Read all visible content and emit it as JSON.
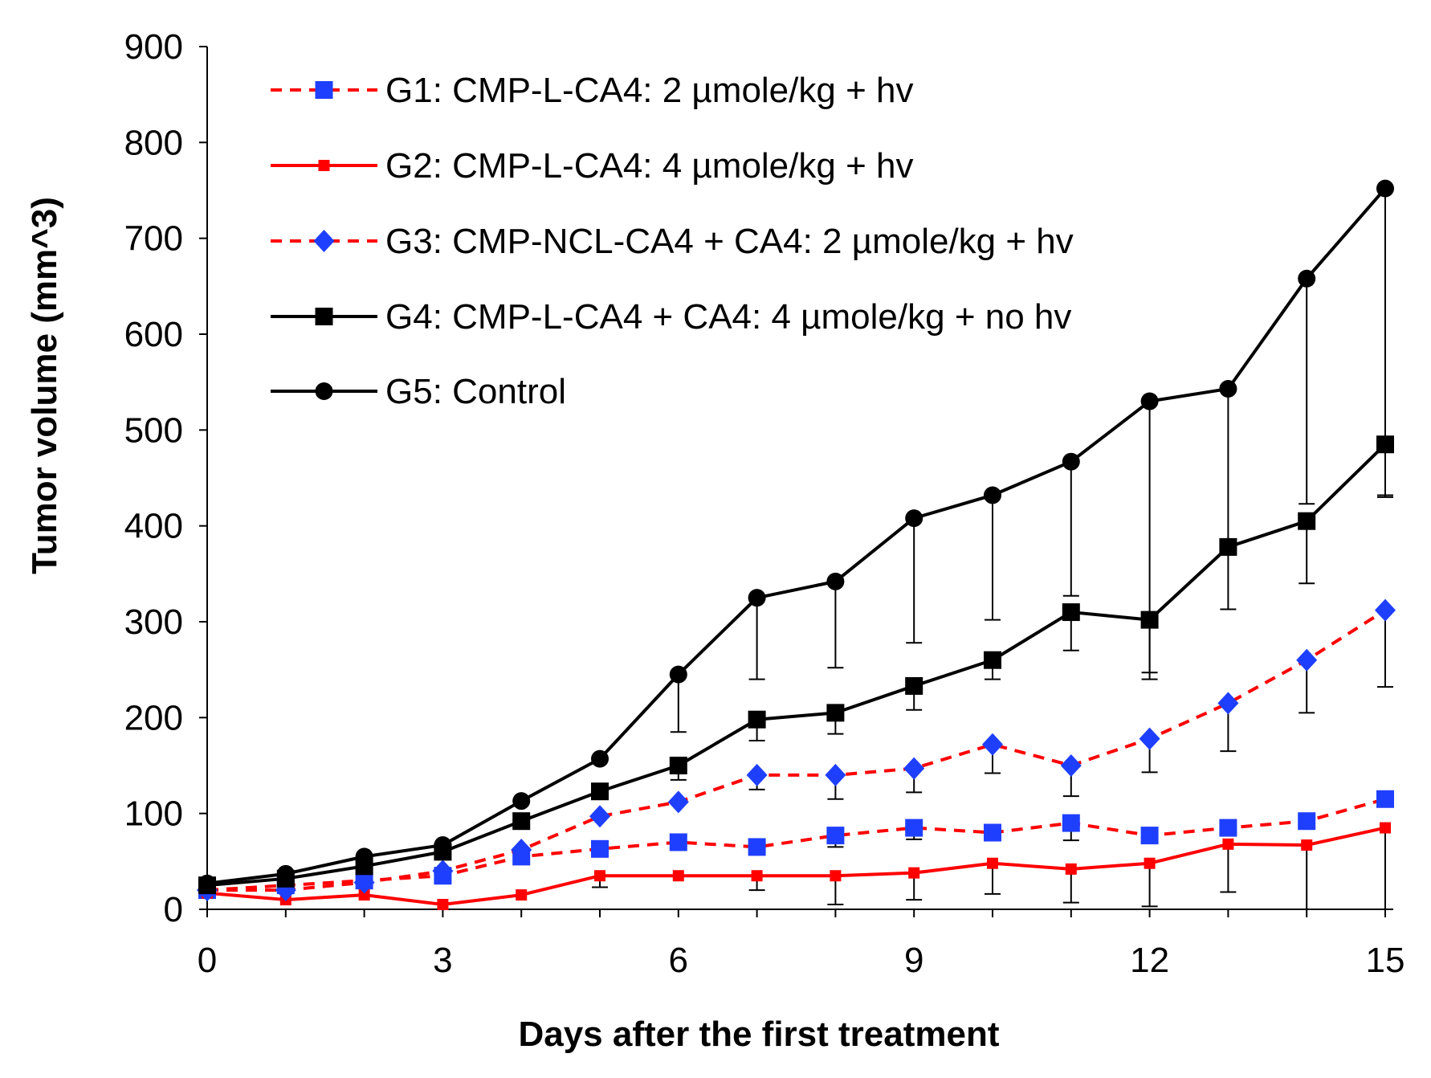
{
  "chart_data": {
    "type": "line",
    "title": "",
    "xlabel": "Days after the first treatment",
    "ylabel": "Tumor volume  (mm^3)",
    "xlim": [
      0,
      15
    ],
    "ylim": [
      0,
      900
    ],
    "x_ticks": [
      0,
      3,
      6,
      9,
      12,
      15
    ],
    "y_ticks": [
      0,
      100,
      200,
      300,
      400,
      500,
      600,
      700,
      800,
      900
    ],
    "legend_position": "top-left",
    "x": [
      0,
      1,
      2,
      3,
      4,
      5,
      6,
      7,
      8,
      9,
      10,
      11,
      12,
      13,
      14,
      15
    ],
    "series": [
      {
        "name": "G1: CMP-L-CA4: 2 µmole/kg + hv",
        "line_color": "#ff0000",
        "marker_color": "#1f3fff",
        "dash": "dashed",
        "marker": "square",
        "values": [
          20,
          25,
          30,
          35,
          55,
          63,
          70,
          65,
          77,
          85,
          80,
          90,
          77,
          85,
          92,
          115
        ],
        "error": [
          0,
          0,
          0,
          0,
          0,
          0,
          0,
          0,
          12,
          12,
          0,
          18,
          0,
          0,
          0,
          0
        ]
      },
      {
        "name": "G2: CMP-L-CA4: 4 µmole/kg + hv",
        "line_color": "#ff0000",
        "marker_color": "#ff0000",
        "dash": "solid",
        "marker": "small-square",
        "values": [
          17,
          10,
          15,
          5,
          15,
          35,
          35,
          35,
          35,
          38,
          48,
          42,
          48,
          68,
          67,
          85
        ],
        "error": [
          0,
          0,
          0,
          0,
          0,
          12,
          0,
          15,
          30,
          28,
          32,
          35,
          45,
          50,
          67,
          85
        ]
      },
      {
        "name": "G3: CMP-NCL-CA4 + CA4: 2 µmole/kg + hv",
        "line_color": "#ff0000",
        "marker_color": "#1f3fff",
        "dash": "dashed",
        "marker": "diamond",
        "values": [
          20,
          20,
          28,
          40,
          62,
          97,
          112,
          140,
          140,
          147,
          172,
          150,
          178,
          215,
          260,
          312
        ],
        "error": [
          0,
          0,
          0,
          0,
          0,
          0,
          0,
          15,
          25,
          25,
          30,
          32,
          35,
          50,
          55,
          80
        ]
      },
      {
        "name": "G4: CMP-L-CA4 + CA4: 4 µmole/kg + no hv",
        "line_color": "#000000",
        "marker_color": "#000000",
        "dash": "solid",
        "marker": "square",
        "values": [
          25,
          32,
          45,
          60,
          92,
          123,
          150,
          198,
          205,
          233,
          260,
          310,
          302,
          378,
          405,
          485
        ],
        "error": [
          0,
          0,
          0,
          0,
          0,
          0,
          15,
          22,
          22,
          25,
          20,
          40,
          55,
          65,
          65,
          55
        ]
      },
      {
        "name": "G5: Control",
        "line_color": "#000000",
        "marker_color": "#000000",
        "dash": "solid",
        "marker": "circle",
        "values": [
          27,
          37,
          55,
          67,
          113,
          157,
          245,
          325,
          342,
          408,
          432,
          467,
          530,
          543,
          658,
          752
        ],
        "error": [
          0,
          0,
          0,
          0,
          0,
          0,
          60,
          85,
          90,
          130,
          130,
          140,
          290,
          165,
          235,
          320
        ]
      }
    ]
  }
}
